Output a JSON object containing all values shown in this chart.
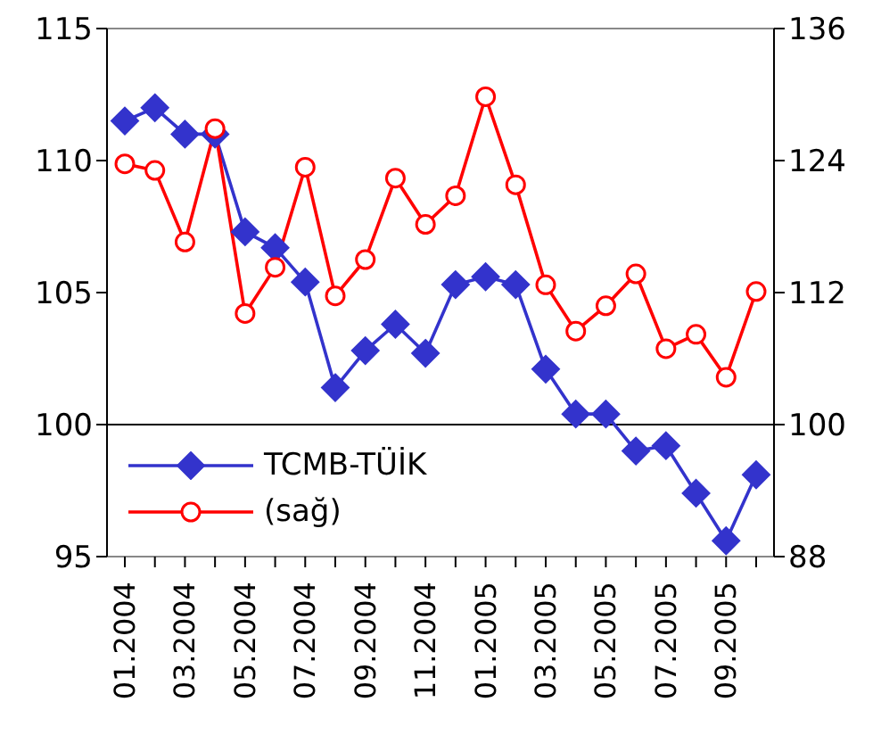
{
  "chart_data": {
    "type": "line",
    "categories": [
      "01.2004",
      null,
      "03.2004",
      null,
      "05.2004",
      null,
      "07.2004",
      null,
      "09.2004",
      null,
      "11.2004",
      null,
      "01.2005",
      null,
      "03.2005",
      null,
      "05.2005",
      null,
      "07.2005",
      null,
      "09.2005",
      null
    ],
    "series": [
      {
        "name": "TCMB-TÜİK",
        "color": "#3333cc",
        "marker": "diamond",
        "values": [
          111.5,
          112.0,
          111.0,
          111.0,
          107.3,
          106.7,
          105.4,
          101.4,
          102.8,
          103.8,
          102.7,
          105.3,
          105.6,
          105.3,
          102.1,
          100.4,
          100.4,
          99.0,
          99.2,
          97.4,
          95.6,
          98.1
        ]
      },
      {
        "name": "(sağ)",
        "color": "#ff0000",
        "marker": "circle",
        "axis": "y2",
        "values": [
          123.7,
          123.1,
          116.6,
          126.9,
          110.1,
          114.3,
          123.4,
          111.7,
          115.0,
          122.4,
          118.2,
          120.8,
          129.8,
          121.8,
          112.7,
          108.5,
          110.8,
          113.7,
          106.9,
          108.2,
          104.3,
          112.1
        ]
      }
    ],
    "ylim": [
      95,
      115
    ],
    "yticks": [
      95,
      100,
      105,
      110,
      115
    ],
    "y2lim": [
      88,
      136
    ],
    "y2ticks": [
      88,
      100,
      112,
      124,
      136
    ],
    "ref_lines": [
      {
        "axis": "y",
        "value": 100
      }
    ],
    "grid": false,
    "legend": "bottom left",
    "line_style": "solid"
  }
}
